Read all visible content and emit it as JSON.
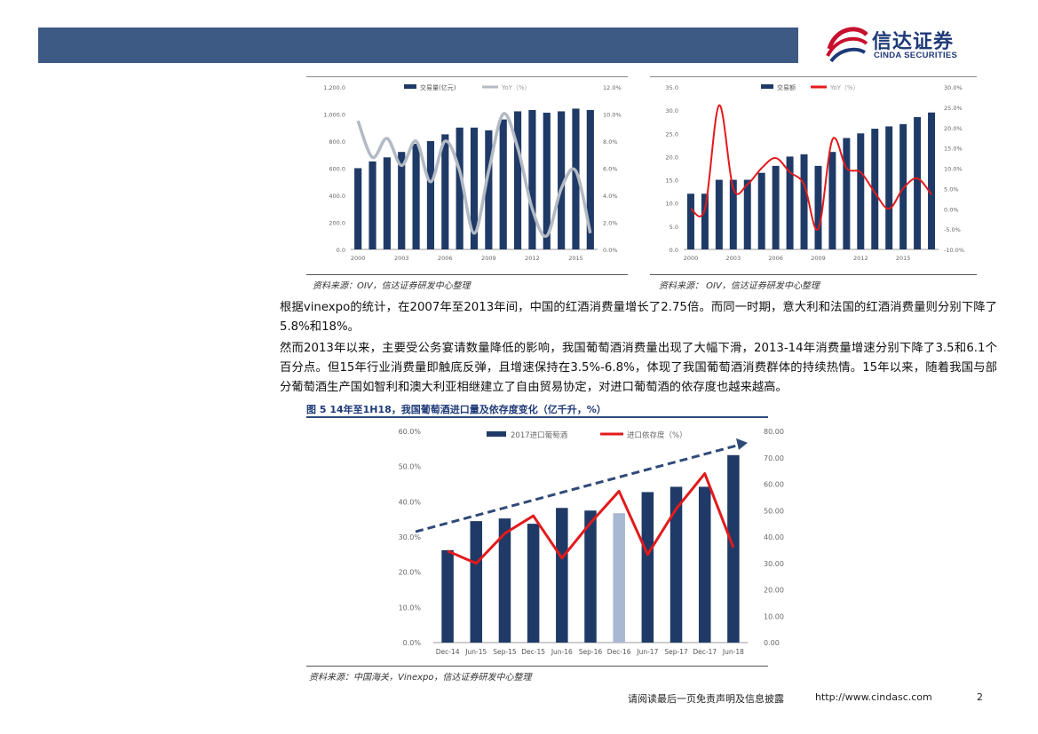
{
  "header": {
    "logo_cn": "信达证券",
    "logo_en": "CINDA SECURITIES"
  },
  "charts": {
    "left": {
      "source": "资料来源：OIV，信达证券研发中心整理",
      "chart_data": {
        "type": "bar",
        "series": [
          {
            "name": "交易量(亿元)",
            "kind": "bar",
            "axis": "left",
            "values": [
              600,
              650,
              680,
              720,
              780,
              800,
              850,
              900,
              900,
              880,
              960,
              1020,
              1030,
              1010,
              1020,
              1040,
              1030
            ]
          },
          {
            "name": "YoY（%）",
            "kind": "line",
            "axis": "right",
            "values": [
              9.5,
              6.8,
              8.2,
              6.2,
              8.0,
              5.0,
              8.0,
              5.8,
              1.2,
              5.8,
              10.0,
              7.5,
              3.0,
              1.0,
              4.5,
              5.8,
              1.2
            ]
          }
        ],
        "left_ticks": [
          "1,200.0",
          "1,000.0",
          "800.0",
          "600.0",
          "400.0",
          "200.0",
          "0.0"
        ],
        "right_ticks": [
          "12.0%",
          "10.0%",
          "8.0%",
          "6.0%",
          "4.0%",
          "2.0%",
          "0.0%"
        ],
        "x_ticks": [
          "2000",
          "2003",
          "2006",
          "2009",
          "2012",
          "2015"
        ],
        "ylim": [
          0,
          1200
        ],
        "y2lim": [
          0,
          12
        ]
      }
    },
    "right": {
      "source": "资料来源： OIV，信达证券研发中心整理",
      "chart_data": {
        "type": "bar",
        "series": [
          {
            "name": "交易额",
            "kind": "bar",
            "axis": "left",
            "values": [
              12,
              12,
              15,
              15,
              15,
              16.5,
              18,
              20,
              20.5,
              18,
              21,
              24,
              25,
              26,
              26.5,
              27,
              28.5,
              29.5
            ]
          },
          {
            "name": "YoY（%）",
            "kind": "line",
            "axis": "right",
            "values": [
              0,
              0,
              25.5,
              5,
              6,
              10,
              12.5,
              9,
              6,
              -5,
              17,
              10,
              9,
              4,
              0,
              5,
              7.5,
              3.5
            ]
          }
        ],
        "left_ticks": [
          "35.0",
          "30.0",
          "25.0",
          "20.0",
          "15.0",
          "10.0",
          "5.0",
          "0.0"
        ],
        "right_ticks": [
          "30.0%",
          "25.0%",
          "20.0%",
          "15.0%",
          "10.0%",
          "5.0%",
          "0.0%",
          "-5.0%",
          "-10.0%"
        ],
        "x_ticks": [
          "2000",
          "2003",
          "2006",
          "2009",
          "2012",
          "2015"
        ],
        "ylim": [
          0,
          35
        ],
        "y2lim": [
          -10,
          30
        ]
      }
    },
    "bottom": {
      "title": "图 5 14年至1H18，我国葡萄酒进口量及依存度变化（亿千升，%）",
      "source": "资料来源：中国海关，Vinexpo，信达证券研发中心整理",
      "chart_data": {
        "type": "bar",
        "categories": [
          "Dec-14",
          "Jun-15",
          "Sep-15",
          "Dec-15",
          "Jun-16",
          "Sep-16",
          "Dec-16",
          "Jun-17",
          "Sep-17",
          "Dec-17",
          "Jun-18"
        ],
        "series": [
          {
            "name": "2017进口葡萄酒",
            "kind": "bar",
            "axis": "right",
            "values": [
              35,
              46,
              47,
              45,
              51,
              50,
              49,
              57,
              59,
              59,
              71
            ]
          },
          {
            "name": "进口依存度（%）",
            "kind": "line",
            "axis": "left",
            "values": [
              26,
              22.5,
              31,
              36,
              24,
              34,
              43,
              25,
              38,
              48,
              27
            ]
          }
        ],
        "highlighted_index": 6,
        "highlight_color": "#a9b8d1",
        "trend": "dashed arrow up",
        "left_ticks": [
          "60.0%",
          "50.0%",
          "40.0%",
          "30.0%",
          "20.0%",
          "10.0%",
          "0.0%"
        ],
        "right_ticks": [
          "80.00",
          "70.00",
          "60.00",
          "50.00",
          "40.00",
          "30.00",
          "20.00",
          "10.00",
          "0.00"
        ],
        "ylim": [
          0,
          60
        ],
        "y2lim": [
          0,
          80
        ]
      }
    }
  },
  "body": {
    "para1": "根据vinexpo的统计，在2007年至2013年间，中国的红酒消费量增长了2.75倍。而同一时期，意大利和法国的红酒消费量则分别下降了5.8%和18%。",
    "para2": "然而2013年以来，主要受公务宴请数量降低的影响，我国葡萄酒消费量出现了大幅下滑，2013-14年消费量增速分别下降了3.5和6.1个百分点。但15年行业消费量即触底反弹，且增速保持在3.5%-6.8%，体现了我国葡萄酒消费群体的持续热情。15年以来，随着我国与部分葡萄酒生产国如智利和澳大利亚相继建立了自由贸易协定，对进口葡萄酒的依存度也越来越高。"
  },
  "footer": {
    "disclaimer": "请阅读最后一页免责声明及信息披露",
    "url": "http://www.cindasc.com",
    "page": "2"
  },
  "colors": {
    "navy": "#1f3a66",
    "header_bar": "#3d5a85",
    "red": "#e31a1c",
    "grey_line": "#b3bac4",
    "trend": "#2f4a78"
  }
}
